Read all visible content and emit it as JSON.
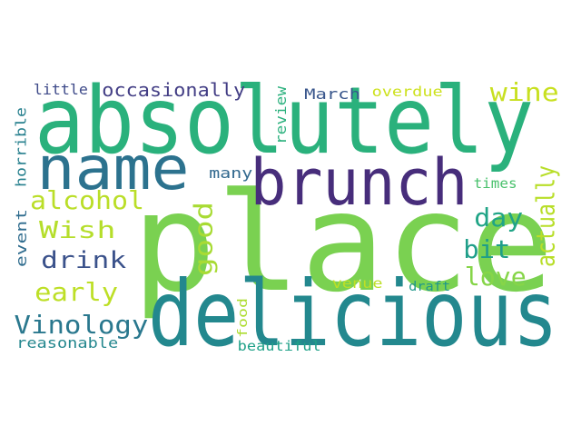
{
  "words": [
    {
      "text": "absolutely",
      "color": "#2ab17c"
    },
    {
      "text": "place",
      "color": "#7ad151"
    },
    {
      "text": "delicious",
      "color": "#23888e"
    },
    {
      "text": "brunch",
      "color": "#472d7b"
    },
    {
      "text": "name",
      "color": "#2c728e"
    },
    {
      "text": "alcohol",
      "color": "#bade28"
    },
    {
      "text": "Wish",
      "color": "#b5de2b"
    },
    {
      "text": "drink",
      "color": "#3b528b"
    },
    {
      "text": "early",
      "color": "#bddf26"
    },
    {
      "text": "Vinology",
      "color": "#2a788e"
    },
    {
      "text": "occasionally",
      "color": "#433e85"
    },
    {
      "text": "wine",
      "color": "#c8e020"
    },
    {
      "text": "actually",
      "color": "#b8de29"
    },
    {
      "text": "day",
      "color": "#20a486"
    },
    {
      "text": "bit",
      "color": "#1f9e89"
    },
    {
      "text": "love",
      "color": "#86d549"
    },
    {
      "text": "good",
      "color": "#a8db34"
    },
    {
      "text": "little",
      "color": "#3e4a89"
    },
    {
      "text": "horrible",
      "color": "#27808e"
    },
    {
      "text": "event",
      "color": "#2f6c8e"
    },
    {
      "text": "review",
      "color": "#2cb17e"
    },
    {
      "text": "March",
      "color": "#39568c"
    },
    {
      "text": "overdue",
      "color": "#cde11d"
    },
    {
      "text": "many",
      "color": "#31688e"
    },
    {
      "text": "times",
      "color": "#4ac16d"
    },
    {
      "text": "food",
      "color": "#addc30"
    },
    {
      "text": "venue",
      "color": "#bddf26"
    },
    {
      "text": "draft",
      "color": "#1f978b"
    },
    {
      "text": "reasonable",
      "color": "#24878e"
    },
    {
      "text": "beautiful",
      "color": "#1fa188"
    }
  ]
}
